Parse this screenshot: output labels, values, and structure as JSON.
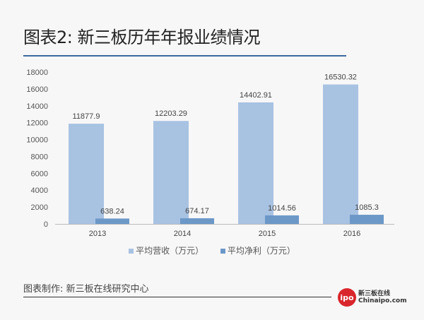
{
  "title": "图表2: 新三板历年年报业绩情况",
  "source": "图表制作: 新三板在线研究中心",
  "logo": {
    "mark": "ipo",
    "name": "新三板在线",
    "site": "Chinaipo.com"
  },
  "chart_data": {
    "type": "bar",
    "title": "图表2: 新三板历年年报业绩情况",
    "categories": [
      "2013",
      "2014",
      "2015",
      "2016"
    ],
    "series": [
      {
        "name": "平均营收（万元）",
        "values": [
          11877.9,
          12203.29,
          14402.91,
          16530.32
        ],
        "labels": [
          "11877.9",
          "12203.29",
          "14402.91",
          "16530.32"
        ],
        "color": "#a8c2e2"
      },
      {
        "name": "平均净利（万元）",
        "values": [
          638.24,
          674.17,
          1014.56,
          1085.3
        ],
        "labels": [
          "638.24",
          "674.17",
          "1014.56",
          "1085.3"
        ],
        "color": "#6c98c8"
      }
    ],
    "ylim": [
      0,
      18000
    ],
    "yticks": [
      "0",
      "2000",
      "4000",
      "6000",
      "8000",
      "10000",
      "12000",
      "14000",
      "16000",
      "18000"
    ],
    "grid": false,
    "legend": "bottom"
  }
}
